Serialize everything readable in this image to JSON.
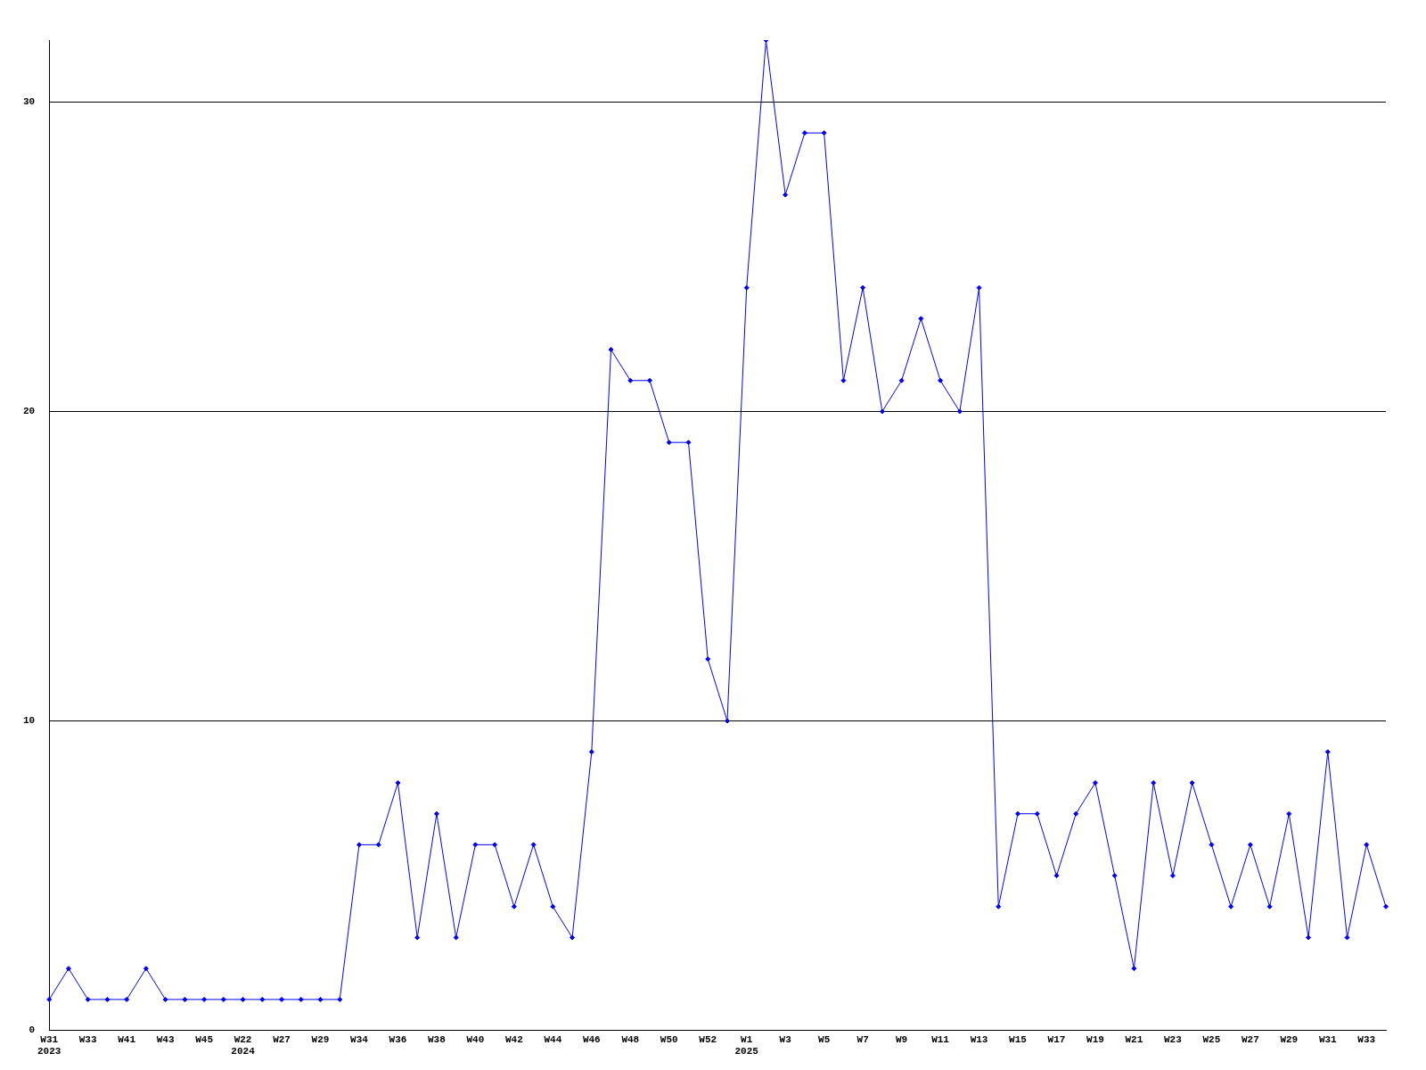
{
  "chart_data": {
    "type": "line",
    "categories": [
      "W31\n2023",
      null,
      "W33",
      null,
      "W41",
      null,
      "W43",
      null,
      "W45",
      null,
      "W22\n2024",
      null,
      "W27",
      null,
      "W29",
      null,
      "W34",
      null,
      "W36",
      null,
      "W38",
      null,
      "W40",
      null,
      "W42",
      null,
      "W44",
      null,
      "W46",
      null,
      "W48",
      null,
      "W50",
      null,
      "W52",
      null,
      "W1\n2025",
      null,
      "W3",
      null,
      "W5",
      null,
      "W7",
      null,
      "W9",
      null,
      "W11",
      null,
      "W13",
      null,
      "W15",
      null,
      "W17",
      null,
      "W19",
      null,
      "W21",
      null,
      "W23",
      null,
      "W25",
      null,
      "W27",
      null,
      "W29",
      null,
      "W31",
      null,
      "W33",
      null
    ],
    "series": [
      {
        "color": "#0000ff",
        "values": [
          1,
          2,
          1,
          1,
          1,
          2,
          1,
          1,
          1,
          1,
          1,
          1,
          1,
          1,
          1,
          1,
          6,
          6,
          8,
          3,
          7,
          3,
          6,
          6,
          4,
          6,
          4,
          3,
          9,
          22,
          21,
          21,
          19,
          19,
          12,
          10,
          24,
          32,
          27,
          29,
          29,
          21,
          24,
          20,
          21,
          23,
          21,
          20,
          24,
          4,
          7,
          7,
          5,
          7,
          8,
          5,
          2,
          8,
          5,
          8,
          6,
          4,
          6,
          4,
          7,
          3,
          9,
          3,
          6,
          4
        ]
      }
    ],
    "ylim": [
      0,
      32
    ],
    "yticks": [
      0,
      10,
      20,
      30
    ],
    "grid": "y",
    "marker": "diamond",
    "line_style": "solid"
  }
}
